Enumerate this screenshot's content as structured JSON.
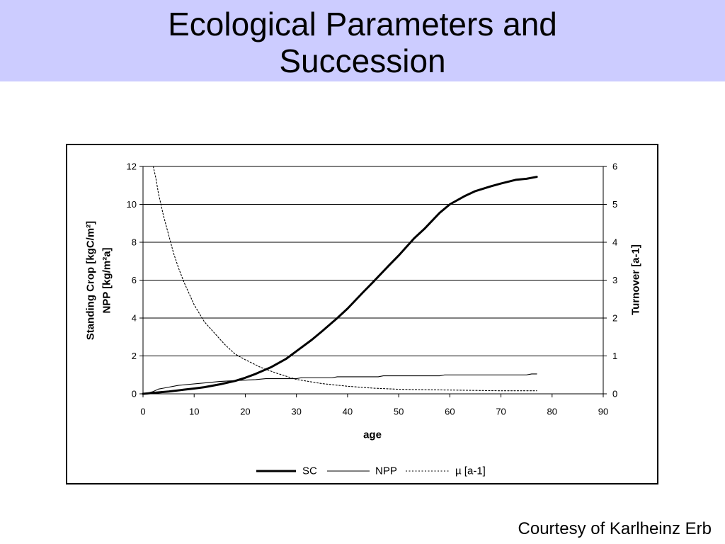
{
  "slide": {
    "title": "Ecological Parameters and Succession",
    "footer": "Courtesy of Karlheinz Erb",
    "banner_color": "#ccccff"
  },
  "chart_data": {
    "type": "line",
    "xlabel": "age",
    "ylabel_left": [
      "Standing Crop [kgC/m²]",
      "NPP [kg/m²a]"
    ],
    "ylabel_right": "Turnover [a-1]",
    "xlim": [
      0,
      90
    ],
    "xticks": [
      0,
      10,
      20,
      30,
      40,
      50,
      60,
      70,
      80,
      90
    ],
    "ylim_left": [
      0,
      12
    ],
    "yticks_left": [
      0,
      2,
      4,
      6,
      8,
      10,
      12
    ],
    "ylim_right": [
      0,
      6
    ],
    "yticks_right": [
      0,
      1,
      2,
      3,
      4,
      5,
      6
    ],
    "grid": "horizontal",
    "legend": "bottom",
    "series": [
      {
        "name": "SC",
        "axis": "left",
        "line_style": "thick",
        "color": "#000000",
        "x": [
          0,
          2,
          5,
          8,
          10,
          12,
          15,
          18,
          20,
          22,
          25,
          28,
          30,
          33,
          35,
          38,
          40,
          43,
          45,
          48,
          50,
          53,
          55,
          58,
          60,
          63,
          65,
          68,
          70,
          73,
          75,
          77
        ],
        "y": [
          0,
          0.05,
          0.12,
          0.22,
          0.28,
          0.35,
          0.5,
          0.68,
          0.85,
          1.05,
          1.4,
          1.85,
          2.25,
          2.85,
          3.3,
          4.0,
          4.5,
          5.35,
          5.9,
          6.75,
          7.3,
          8.2,
          8.7,
          9.55,
          10.0,
          10.45,
          10.7,
          10.95,
          11.1,
          11.3,
          11.35,
          11.45
        ]
      },
      {
        "name": "NPP",
        "axis": "left",
        "line_style": "thin",
        "color": "#000000",
        "x": [
          0,
          1,
          2,
          3,
          4,
          5,
          7,
          9,
          11,
          13,
          15,
          18,
          22,
          24,
          30,
          31,
          37,
          38,
          46,
          47,
          58,
          59,
          75,
          76,
          77
        ],
        "y": [
          0,
          0.05,
          0.12,
          0.25,
          0.3,
          0.35,
          0.45,
          0.5,
          0.55,
          0.6,
          0.65,
          0.7,
          0.75,
          0.8,
          0.8,
          0.85,
          0.85,
          0.9,
          0.9,
          0.95,
          0.95,
          1.0,
          1.0,
          1.05,
          1.05
        ]
      },
      {
        "name": "µ [a-1]",
        "axis": "right",
        "line_style": "dotted",
        "color": "#000000",
        "x": [
          2,
          2.5,
          3,
          3.5,
          4,
          5,
          6,
          7,
          8,
          9,
          10,
          12,
          14,
          16,
          18,
          20,
          23,
          26,
          30,
          35,
          40,
          45,
          50,
          55,
          60,
          65,
          70,
          77
        ],
        "y": [
          6.0,
          5.7,
          5.3,
          5.0,
          4.7,
          4.2,
          3.7,
          3.3,
          2.95,
          2.65,
          2.35,
          1.9,
          1.6,
          1.3,
          1.05,
          0.9,
          0.7,
          0.55,
          0.38,
          0.27,
          0.2,
          0.15,
          0.12,
          0.11,
          0.1,
          0.09,
          0.08,
          0.08
        ]
      }
    ]
  }
}
